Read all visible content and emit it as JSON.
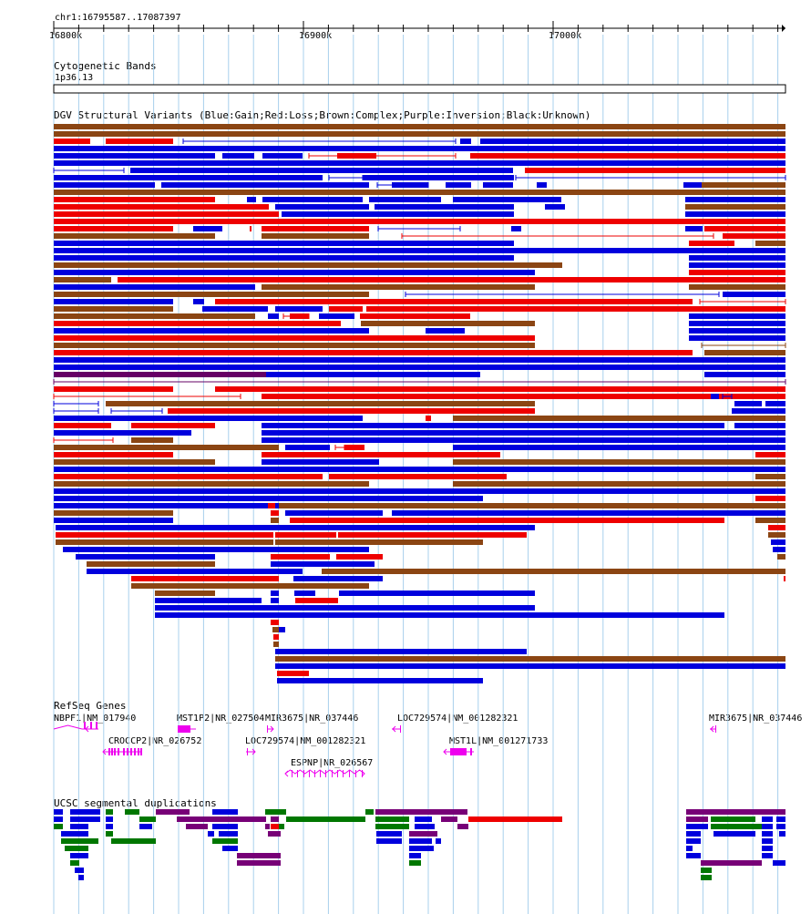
{
  "browser": {
    "location": "chr1:16795587..17087397",
    "ruler": {
      "ticks": [
        "16800k",
        "16900k",
        "17000k"
      ]
    }
  },
  "tracks": {
    "cytoband": {
      "title": "Cytogenetic Bands",
      "band": "1p36.13"
    },
    "dgv": {
      "title": "DGV Structural Variants (Blue:Gain;Red:Loss;Brown:Complex;Purple:Inversion;Black:Unknown)",
      "colors": {
        "gain": "#0000dd",
        "loss": "#ee0000",
        "complex": "#8b4513",
        "inversion": "#660066",
        "unknown": "#000000"
      }
    },
    "refseq": {
      "title": "RefSeq Genes",
      "color": "#ee00ee",
      "genes": [
        {
          "label": "NBPF1|NM_017940"
        },
        {
          "label": "MST1P2|NR_027504"
        },
        {
          "label": "MIR3675|NR_037446"
        },
        {
          "label": "LOC729574|NM_001282321"
        },
        {
          "label": "MIR3675|NR_037446"
        },
        {
          "label": "CROCCP2|NR_026752"
        },
        {
          "label": "LOC729574|NM_001282321"
        },
        {
          "label": "MST1L|NM_001271733"
        },
        {
          "label": "ESPNP|NR_026567"
        }
      ]
    },
    "segdup": {
      "title": "UCSC segmental duplications",
      "colors": {
        "blue": "#0000dd",
        "green": "#007700",
        "purple": "#770077",
        "red": "#ee0000"
      }
    }
  }
}
